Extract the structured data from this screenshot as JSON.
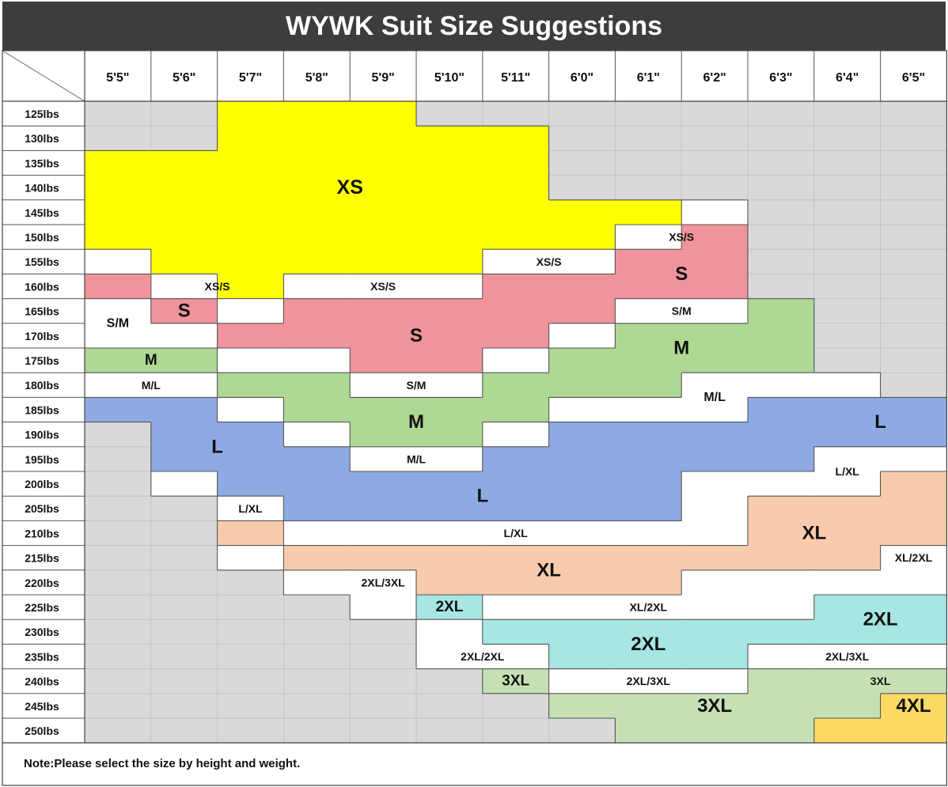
{
  "title": "WYWK Suit Size Suggestions",
  "heights": [
    "5'5\"",
    "5'6\"",
    "5'7\"",
    "5'8\"",
    "5'9\"",
    "5'10\"",
    "5'11\"",
    "6'0\"",
    "6'1\"",
    "6'2\"",
    "6'3\"",
    "6'4\"",
    "6'5\""
  ],
  "weights": [
    "125lbs",
    "130lbs",
    "135lbs",
    "140lbs",
    "145lbs",
    "150lbs",
    "155lbs",
    "160lbs",
    "165lbs",
    "170lbs",
    "175lbs",
    "180lbs",
    "185lbs",
    "190lbs",
    "195lbs",
    "200lbs",
    "205lbs",
    "210lbs",
    "215lbs",
    "220lbs",
    "225lbs",
    "230lbs",
    "235lbs",
    "240lbs",
    "245lbs",
    "250lbs"
  ],
  "colors": {
    "none": "#d9d9d9",
    "XS": "#ffff00",
    "S": "#f0939b",
    "M": "#aed894",
    "L": "#8eaae2",
    "XL": "#f8cbad",
    "2XL": "#a6e6e3",
    "3XL": "#c6e0b4",
    "4XL": "#ffd966",
    "transition": "#ffffff"
  },
  "rows": [
    "- - XS XS XS - - - - - - - -",
    "- - XS XS XS XS XS - - - - - -",
    "XS XS XS XS XS XS XS - - - - - -",
    "XS XS XS XS XS XS XS - - - - - -",
    "XS XS XS XS XS XS XS XS XS T - - -",
    "XS XS XS XS XS XS XS XS T S - - -",
    "T XS XS XS XS XS T T S S - - -",
    "S T XS T T T S S S S - - -",
    "T S T S S S S S T T M - -",
    "T T S S S S S T M M M - -",
    "M M T T S S T M M M M - -",
    "T T M M T T M M M T T T -",
    "L L T M M M M T T T L L L",
    "- L L T M M T L L L L L L",
    "- L L L T T L L L L L T T",
    "- T L L L L L L L T T T XL",
    "- - T L L L L L L T XL XL XL",
    "- - XL T T T T T T T XL XL XL",
    "- - T XL XL XL XL XL XL XL XL XL T",
    "- - - T T XL XL XL XL T T T T",
    "- - - - T 2XL T T T T T 2XL 2XL",
    "- - - - - T 2XL 2XL 2XL 2XL 2XL 2XL 2XL",
    "- - - - - T T 2XL 2XL 2XL T T T",
    "- - - - - - 3XL T T T 3XL 3XL 3XL",
    "- - - - - - - 3XL 3XL 3XL 3XL 3XL 4XL",
    "- - - - - - - - 3XL 3XL 3XL 4XL 4XL"
  ],
  "labels": [
    {
      "text": "XS",
      "x": 4,
      "y": 3.5,
      "size": "big"
    },
    {
      "text": "XS/S",
      "x": 9,
      "y": 5.5,
      "size": "small"
    },
    {
      "text": "XS/S",
      "x": 7,
      "y": 6.5,
      "size": "small"
    },
    {
      "text": "XS/S",
      "x": 2,
      "y": 7.5,
      "size": "small"
    },
    {
      "text": "XS/S",
      "x": 4.5,
      "y": 7.5,
      "size": "small"
    },
    {
      "text": "S",
      "x": 9,
      "y": 7,
      "size": "medium"
    },
    {
      "text": "S",
      "x": 1.5,
      "y": 8.5,
      "size": "medium"
    },
    {
      "text": "S/M",
      "x": 0.5,
      "y": 9,
      "size": "small-bold"
    },
    {
      "text": "S/M",
      "x": 9,
      "y": 8.5,
      "size": "small"
    },
    {
      "text": "S",
      "x": 5,
      "y": 9.5,
      "size": "medium"
    },
    {
      "text": "M",
      "x": 9,
      "y": 10,
      "size": "medium"
    },
    {
      "text": "M",
      "x": 1,
      "y": 10.5,
      "size": "medium-small"
    },
    {
      "text": "M/L",
      "x": 1,
      "y": 11.5,
      "size": "small"
    },
    {
      "text": "S/M",
      "x": 5,
      "y": 11.5,
      "size": "small"
    },
    {
      "text": "M/L",
      "x": 9.5,
      "y": 12,
      "size": "small-bold"
    },
    {
      "text": "M",
      "x": 5,
      "y": 13,
      "size": "medium"
    },
    {
      "text": "L",
      "x": 12,
      "y": 13,
      "size": "medium"
    },
    {
      "text": "L",
      "x": 2,
      "y": 14,
      "size": "medium"
    },
    {
      "text": "M/L",
      "x": 5,
      "y": 14.5,
      "size": "small"
    },
    {
      "text": "L/XL",
      "x": 11.5,
      "y": 15,
      "size": "small"
    },
    {
      "text": "L",
      "x": 6,
      "y": 16,
      "size": "medium"
    },
    {
      "text": "L/XL",
      "x": 2.5,
      "y": 16.5,
      "size": "small"
    },
    {
      "text": "L/XL",
      "x": 6.5,
      "y": 17.5,
      "size": "small"
    },
    {
      "text": "XL",
      "x": 11,
      "y": 17.5,
      "size": "medium"
    },
    {
      "text": "XL/2XL",
      "x": 12.5,
      "y": 18.5,
      "size": "small"
    },
    {
      "text": "XL",
      "x": 7,
      "y": 19,
      "size": "medium"
    },
    {
      "text": "2XL/3XL",
      "x": 4.5,
      "y": 19.5,
      "size": "small"
    },
    {
      "text": "2XL",
      "x": 5.5,
      "y": 20.5,
      "size": "medium-small"
    },
    {
      "text": "XL/2XL",
      "x": 8.5,
      "y": 20.5,
      "size": "small"
    },
    {
      "text": "2XL",
      "x": 12,
      "y": 21,
      "size": "medium"
    },
    {
      "text": "2XL",
      "x": 8.5,
      "y": 22,
      "size": "medium"
    },
    {
      "text": "2XL/2XL",
      "x": 6,
      "y": 22.5,
      "size": "small"
    },
    {
      "text": "2XL/3XL",
      "x": 11.5,
      "y": 22.5,
      "size": "small"
    },
    {
      "text": "3XL",
      "x": 6.5,
      "y": 23.5,
      "size": "medium-small"
    },
    {
      "text": "2XL/3XL",
      "x": 8.5,
      "y": 23.5,
      "size": "small"
    },
    {
      "text": "3XL",
      "x": 12,
      "y": 23.5,
      "size": "small"
    },
    {
      "text": "3XL",
      "x": 9.5,
      "y": 24.5,
      "size": "medium"
    },
    {
      "text": "4XL",
      "x": 12.5,
      "y": 24.5,
      "size": "medium"
    }
  ],
  "note": "Note:Please select the size by height and weight."
}
